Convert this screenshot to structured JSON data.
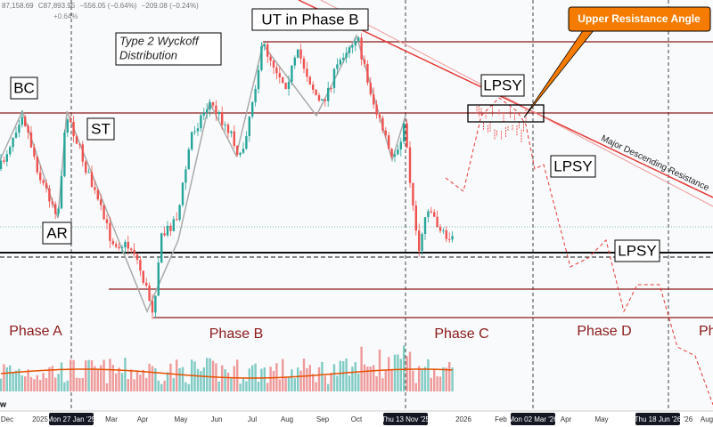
{
  "header": {
    "items": [
      "87,158.69",
      "C87,893.95",
      "−556.05 (−0.64%)",
      "−209.08 (−0.24%)"
    ],
    "second": "+0.64%"
  },
  "annotations": {
    "bc": "BC",
    "st": "ST",
    "ar": "AR",
    "ut": "UT in Phase B",
    "type_title": [
      "Type 2 Wyckoff",
      "Distribution"
    ],
    "lpsy": [
      "LPSY",
      "LPSY",
      "LPSY"
    ],
    "callout": "Upper Resistance Angle",
    "resistance": "Major Descending Resistance"
  },
  "phases": [
    "Phase A",
    "Phase B",
    "Phase C",
    "Phase D",
    "Phase E"
  ],
  "volume_label": "w",
  "x_axis": [
    "Dec",
    "2025",
    "Mon 27 Jan '25",
    "Mar",
    "Apr",
    "May",
    "Jun",
    "Jul",
    "Aug",
    "Sep",
    "Oct",
    "Thu 13 Nov '25",
    "2026",
    "Feb",
    "Mon 02 Mar '26",
    "Apr",
    "May",
    "Thu 18 Jun '26",
    "'26",
    "Aug"
  ]
}
